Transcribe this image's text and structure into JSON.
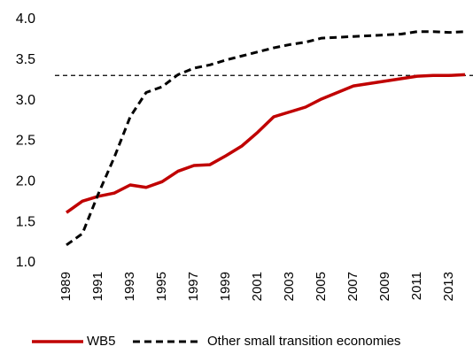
{
  "chart_data": {
    "type": "line",
    "categories": [
      "1989",
      null,
      "1991",
      null,
      "1993",
      null,
      "1995",
      null,
      "1997",
      null,
      "1999",
      null,
      "2001",
      null,
      "2003",
      null,
      "2005",
      null,
      "2007",
      null,
      "2009",
      null,
      "2011",
      null,
      "2013",
      null
    ],
    "series": [
      {
        "name": "WB5",
        "color": "#c00000",
        "dash": false,
        "values": [
          1.62,
          1.76,
          1.82,
          1.86,
          1.96,
          1.93,
          2.0,
          2.13,
          2.2,
          2.21,
          2.32,
          2.44,
          2.61,
          2.8,
          2.86,
          2.92,
          3.02,
          3.1,
          3.18,
          3.21,
          3.24,
          3.27,
          3.3,
          3.31,
          3.31,
          3.32
        ]
      },
      {
        "name": "Other small transition economies",
        "color": "#000000",
        "dash": true,
        "values": [
          1.22,
          1.36,
          1.85,
          2.3,
          2.8,
          3.1,
          3.17,
          3.32,
          3.4,
          3.44,
          3.5,
          3.55,
          3.6,
          3.65,
          3.69,
          3.72,
          3.77,
          3.78,
          3.79,
          3.8,
          3.81,
          3.82,
          3.85,
          3.85,
          3.84,
          3.85
        ]
      }
    ],
    "reference_line": 3.31,
    "ylim": [
      1,
      4
    ],
    "yticks": [
      {
        "value": 1,
        "label": "1.0"
      },
      1.5,
      {
        "value": 2,
        "label": "2.0"
      },
      2.5,
      {
        "value": 3,
        "label": "3.0"
      },
      3.5,
      {
        "value": 4,
        "label": "4.0"
      }
    ],
    "grid": false,
    "legend": "bottom"
  }
}
